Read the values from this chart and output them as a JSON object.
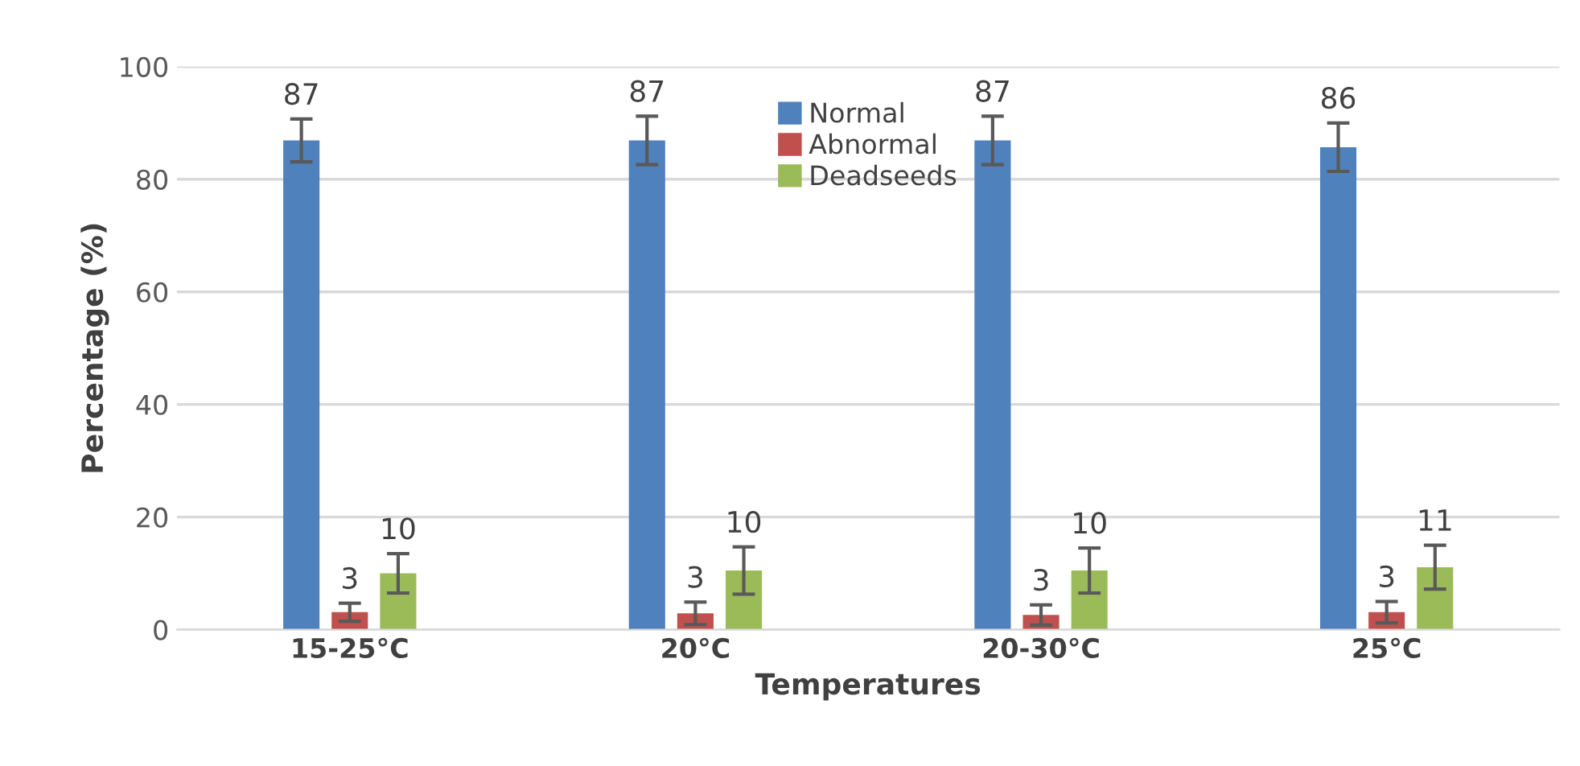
{
  "chart_data": {
    "type": "bar",
    "xlabel": "Temperatures",
    "ylabel": "Percentage (%)",
    "categories": [
      "15-25°C",
      "20°C",
      "20-30°C",
      "25°C"
    ],
    "series": [
      {
        "name": "Normal",
        "color": "#4f81bd",
        "values": [
          86.9,
          86.9,
          86.9,
          85.7
        ],
        "errors": [
          3.8,
          4.3,
          4.3,
          4.3
        ],
        "value_labels": [
          "87",
          "87",
          "87",
          "86"
        ]
      },
      {
        "name": "Abnormal",
        "color": "#c0504d",
        "values": [
          3.1,
          2.9,
          2.6,
          3.1
        ],
        "errors": [
          1.6,
          2.0,
          1.8,
          1.9
        ],
        "value_labels": [
          "3",
          "3",
          "3",
          "3"
        ]
      },
      {
        "name": "Deadseeds",
        "color": "#9bbb59",
        "values": [
          10.0,
          10.5,
          10.5,
          11.1
        ],
        "errors": [
          3.5,
          4.2,
          4.0,
          3.9
        ],
        "value_labels": [
          "10",
          "10",
          "10",
          "11"
        ]
      }
    ],
    "ylim": [
      0,
      100
    ],
    "yticks": [
      0,
      20,
      40,
      60,
      80,
      100
    ],
    "grid": "y",
    "legend": "top"
  }
}
